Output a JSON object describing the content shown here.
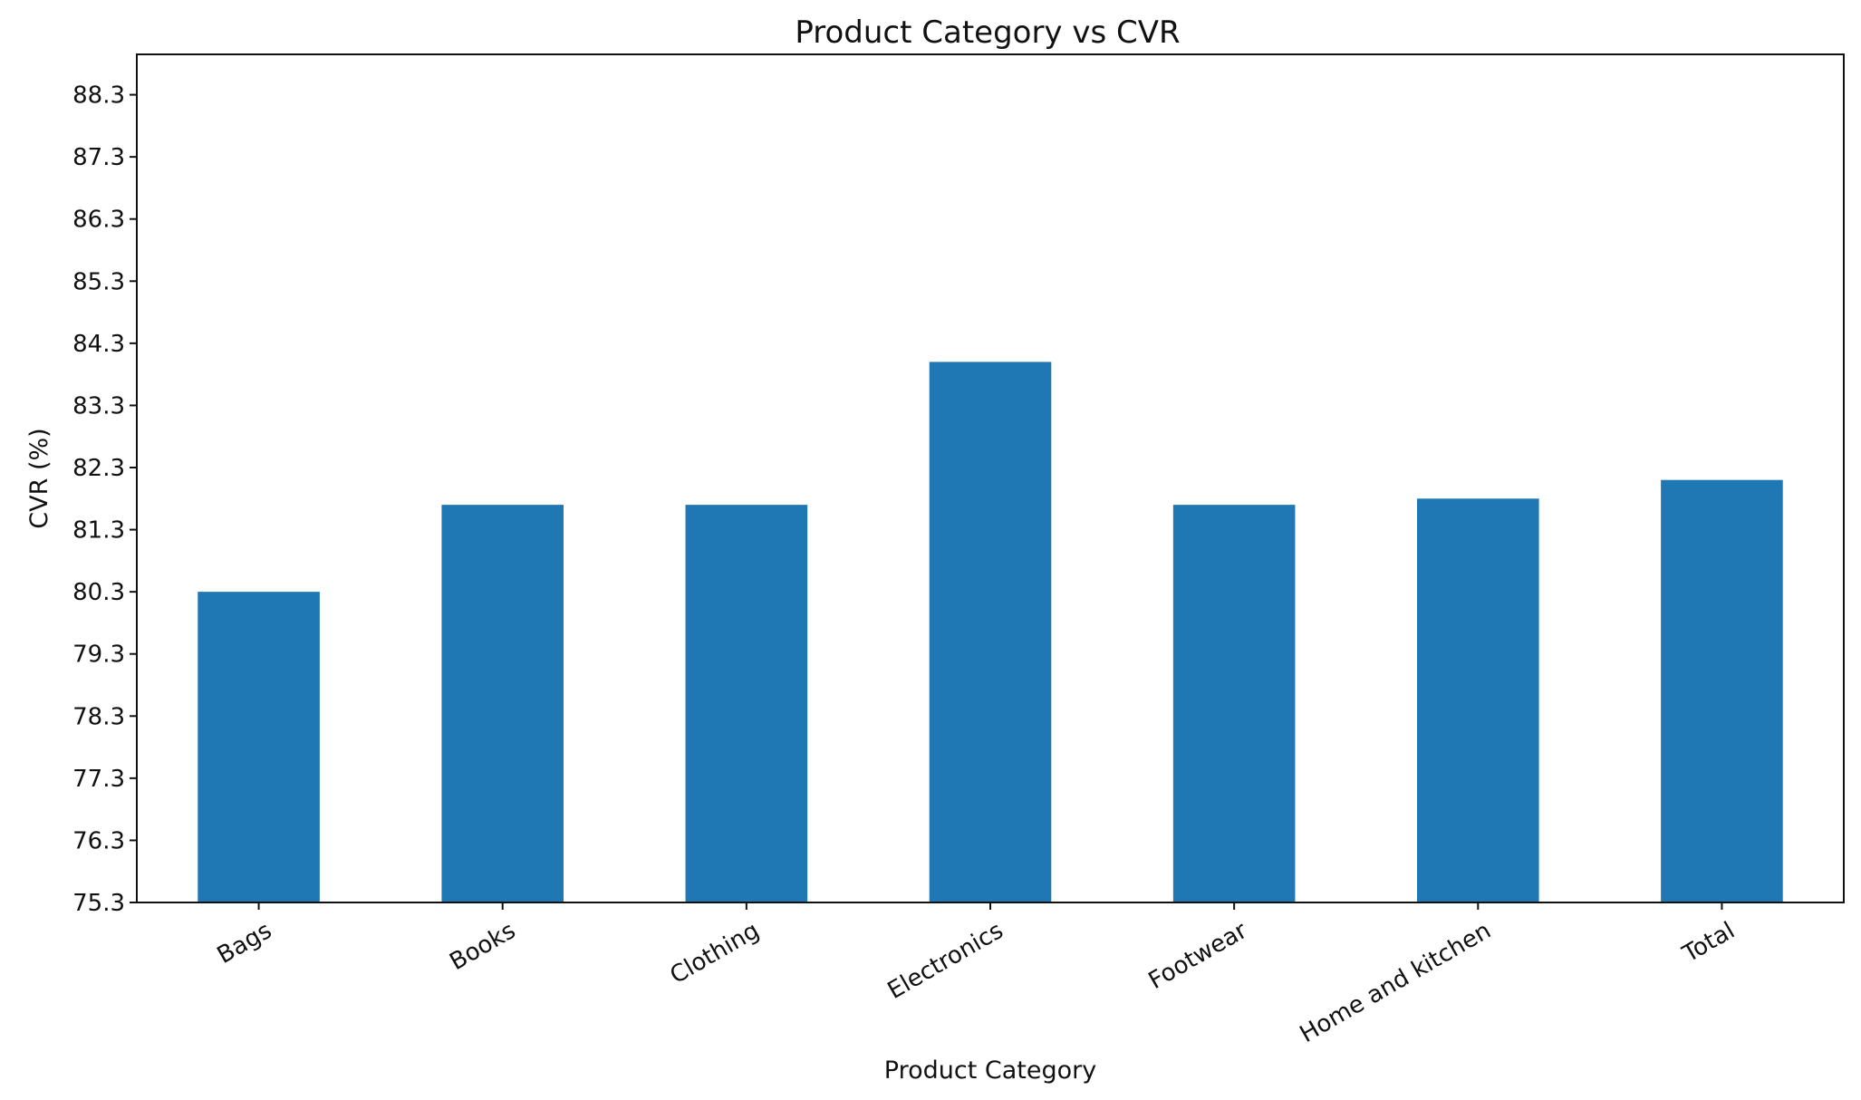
{
  "chart_data": {
    "type": "bar",
    "title": "Product Category vs CVR",
    "xlabel": "Product Category",
    "ylabel": "CVR (%)",
    "categories": [
      "Bags",
      "Books",
      "Clothing",
      "Electronics",
      "Footwear",
      "Home and kitchen",
      "Total"
    ],
    "values": [
      80.3,
      81.7,
      81.7,
      84.0,
      81.7,
      81.8,
      82.1
    ],
    "ylim": [
      75.3,
      88.95
    ],
    "yticks": [
      "75.3",
      "76.3",
      "77.3",
      "78.3",
      "79.3",
      "80.3",
      "81.3",
      "82.3",
      "83.3",
      "84.3",
      "85.3",
      "86.3",
      "87.3",
      "88.3"
    ],
    "grid": false,
    "legend": "none",
    "bar_color": "#1f77b4"
  }
}
